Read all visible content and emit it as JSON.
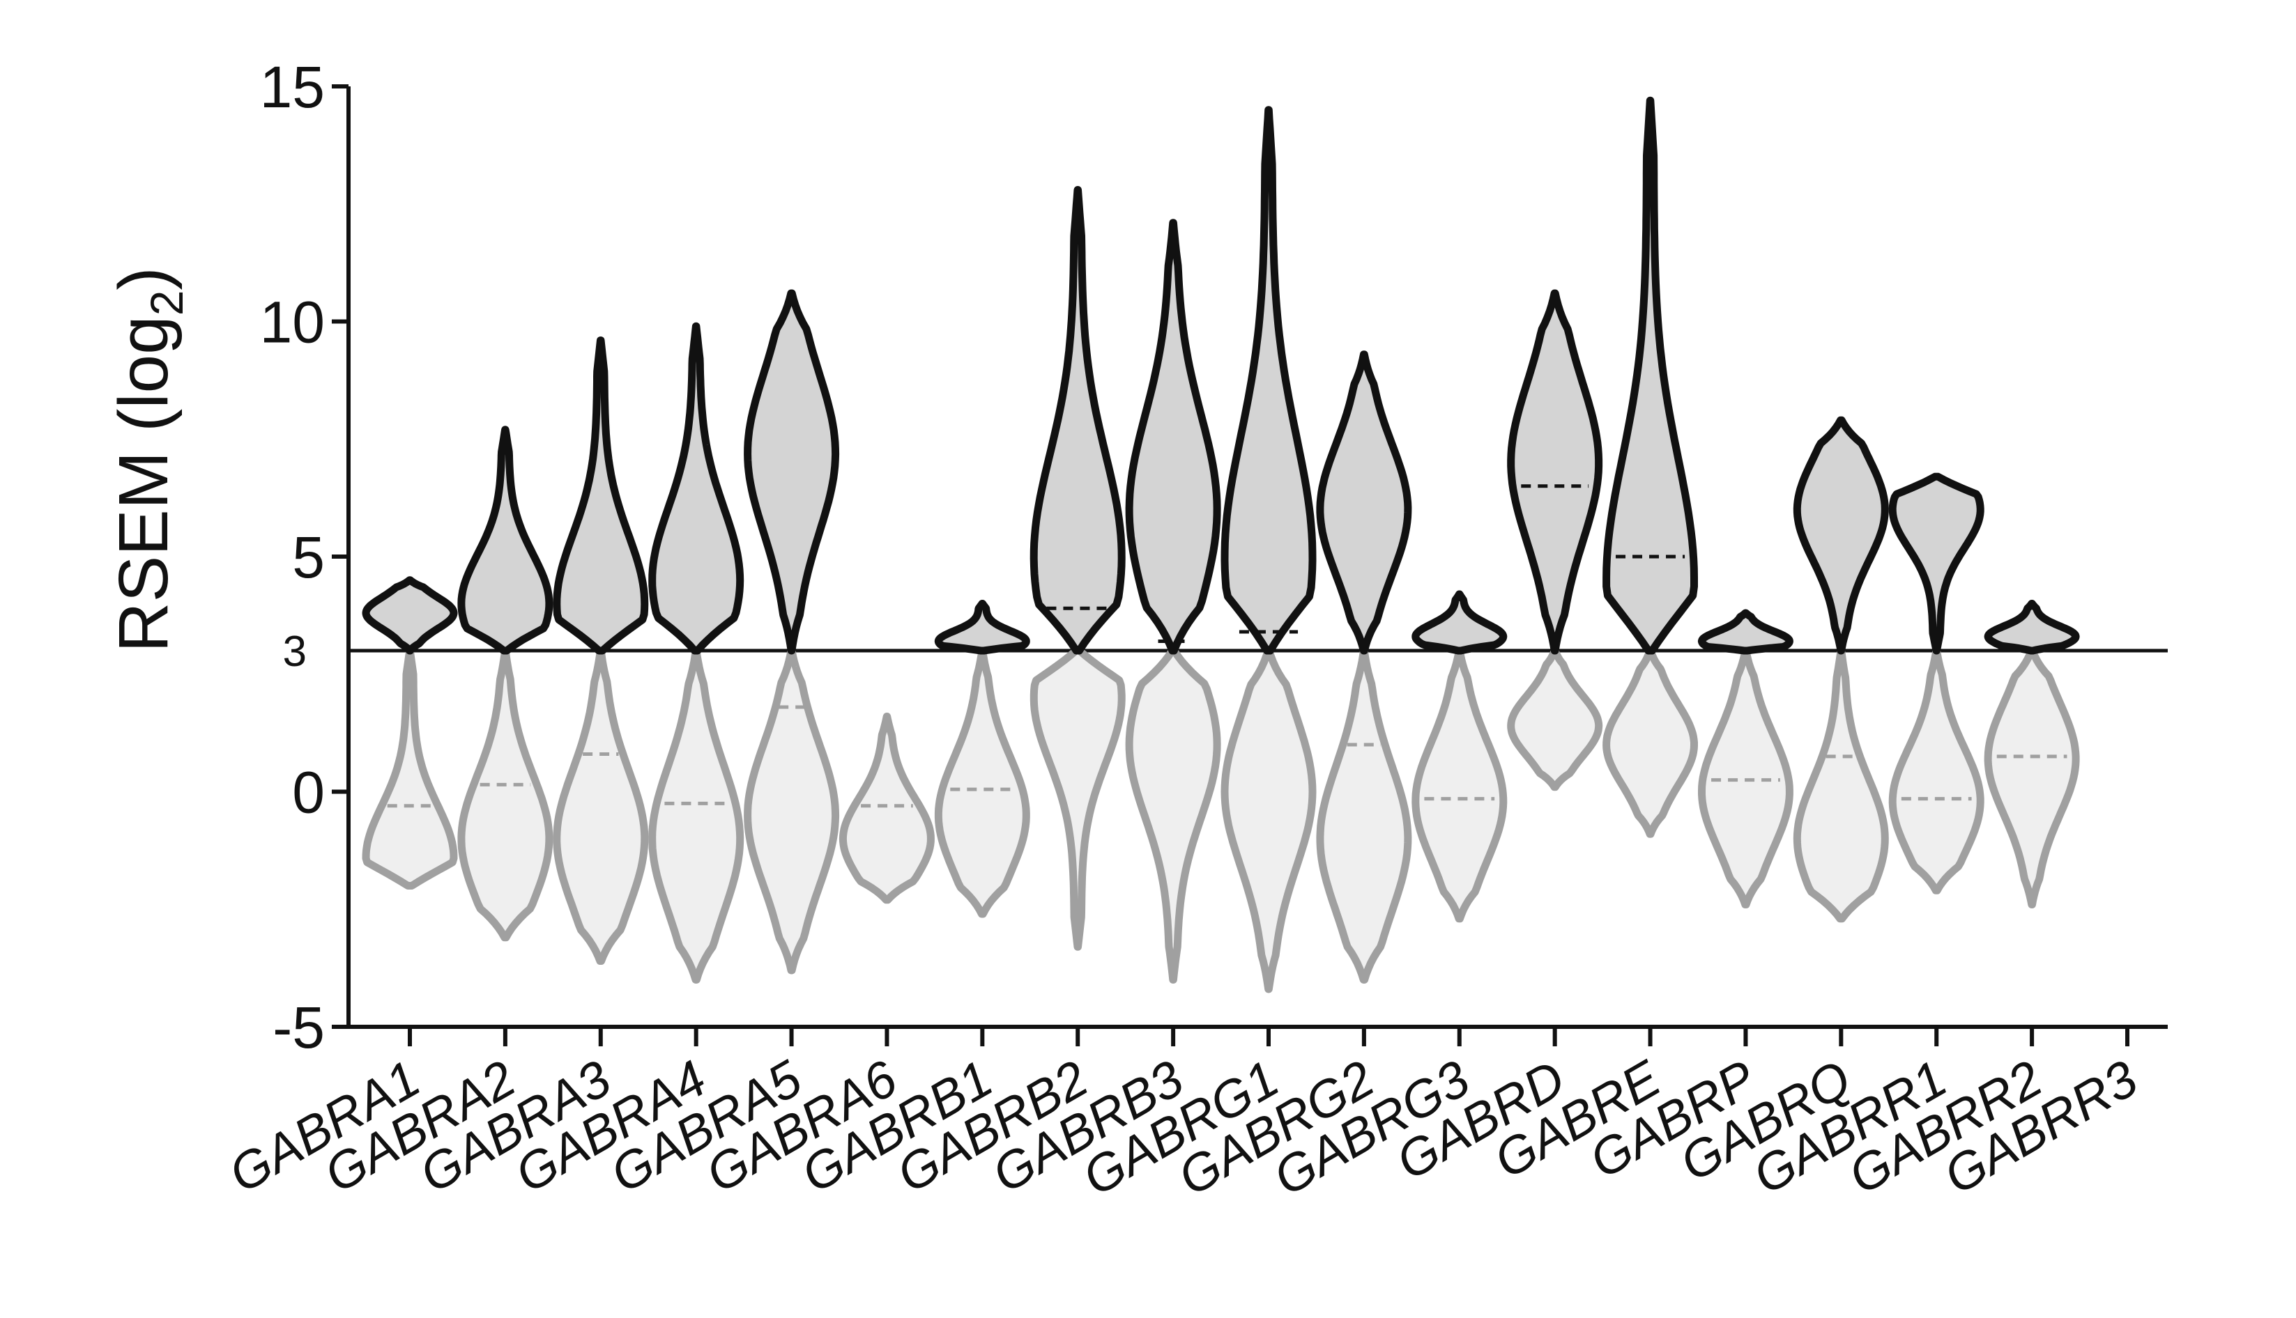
{
  "chart_data": {
    "type": "violin",
    "y_label": [
      "RSEM (log",
      "2",
      ")"
    ],
    "categories": [
      "GABRA1",
      "GABRA2",
      "GABRA3",
      "GABRA4",
      "GABRA5",
      "GABRA6",
      "GABRB1",
      "GABRB2",
      "GABRB3",
      "GABRG1",
      "GABRG2",
      "GABRG3",
      "GABRD",
      "GABRE",
      "GABRP",
      "GABRQ",
      "GABRR1",
      "GABRR2",
      "GABRR3"
    ],
    "ylim": [
      -5,
      15
    ],
    "yticks": [
      -5,
      0,
      5,
      10,
      15
    ],
    "threshold": 3,
    "upper_color": "#111111",
    "upper_fill": "#d4d4d4",
    "lower_color": "#a0a0a0",
    "lower_fill": "#efefef",
    "upper": [
      {
        "min": 3,
        "max": 4.5,
        "peak": 3.8,
        "median": null
      },
      {
        "min": 3,
        "max": 7.7,
        "peak": 4,
        "median": null
      },
      {
        "min": 3,
        "max": 9.6,
        "peak": 4,
        "median": null
      },
      {
        "min": 3,
        "max": 9.9,
        "peak": 4.5,
        "median": null
      },
      {
        "min": 3,
        "max": 10.6,
        "peak": 7.2,
        "median": null
      },
      null,
      {
        "min": 3,
        "max": 4,
        "peak": 3.2,
        "median": null
      },
      {
        "min": 3,
        "max": 12.8,
        "peak": 5,
        "median": 3.9
      },
      {
        "min": 3,
        "max": 12.1,
        "peak": 6,
        "median": 3.2
      },
      {
        "min": 3,
        "max": 14.5,
        "peak": 5,
        "median": 3.4
      },
      {
        "min": 3,
        "max": 9.3,
        "peak": 6,
        "median": null
      },
      {
        "min": 3,
        "max": 4.2,
        "peak": 3.3,
        "median": null
      },
      {
        "min": 3,
        "max": 10.6,
        "peak": 7,
        "median": 6.5
      },
      {
        "min": 3,
        "max": 14.7,
        "peak": 4.5,
        "median": 5
      },
      {
        "min": 3,
        "max": 3.8,
        "peak": 3.2,
        "median": null
      },
      {
        "min": 3,
        "max": 7.9,
        "peak": 6,
        "median": null
      },
      {
        "min": 3,
        "max": 6.7,
        "peak": 6,
        "median": null
      },
      {
        "min": 3,
        "max": 4,
        "peak": 3.3,
        "median": null
      },
      null
    ],
    "lower": [
      {
        "min": -2,
        "max": 3,
        "peak": -1.4,
        "median": -0.3
      },
      {
        "min": -3.1,
        "max": 3,
        "peak": -1,
        "median": 0.15
      },
      {
        "min": -3.6,
        "max": 3,
        "peak": -1,
        "median": 0.8
      },
      {
        "min": -4,
        "max": 3,
        "peak": -1,
        "median": -0.25
      },
      {
        "min": -3.8,
        "max": 3,
        "peak": -0.5,
        "median": 1.8
      },
      {
        "min": -2.3,
        "max": 1.6,
        "peak": -1,
        "median": -0.3
      },
      {
        "min": -2.6,
        "max": 3,
        "peak": -0.5,
        "median": 0.05
      },
      {
        "min": -3.3,
        "max": 3,
        "peak": 2,
        "median": null
      },
      {
        "min": -4,
        "max": 3,
        "peak": 1,
        "median": null
      },
      {
        "min": -4.2,
        "max": 3,
        "peak": 0,
        "median": null
      },
      {
        "min": -4,
        "max": 3,
        "peak": -1,
        "median": 1
      },
      {
        "min": -2.7,
        "max": 3,
        "peak": -0.2,
        "median": -0.15
      },
      {
        "min": 0.1,
        "max": 3,
        "peak": 1.4,
        "median": null
      },
      {
        "min": -0.9,
        "max": 3,
        "peak": 1,
        "median": null
      },
      {
        "min": -2.4,
        "max": 3,
        "peak": 0,
        "median": 0.25
      },
      {
        "min": -2.7,
        "max": 3,
        "peak": -1,
        "median": 0.75
      },
      {
        "min": -2.1,
        "max": 3,
        "peak": -0.2,
        "median": -0.15
      },
      {
        "min": -2.4,
        "max": 3,
        "peak": 0.7,
        "median": 0.75
      },
      null
    ]
  }
}
